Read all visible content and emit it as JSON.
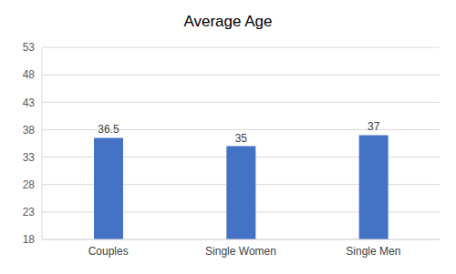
{
  "chart_data": {
    "type": "bar",
    "title": "Average Age",
    "categories": [
      "Couples",
      "Single Women",
      "Single Men"
    ],
    "values": [
      36.5,
      35,
      37
    ],
    "color": "#4472c4",
    "ylim": [
      18,
      53
    ],
    "yticks": [
      18,
      23,
      28,
      33,
      38,
      43,
      48,
      53
    ],
    "grid": true,
    "data_labels": true
  }
}
